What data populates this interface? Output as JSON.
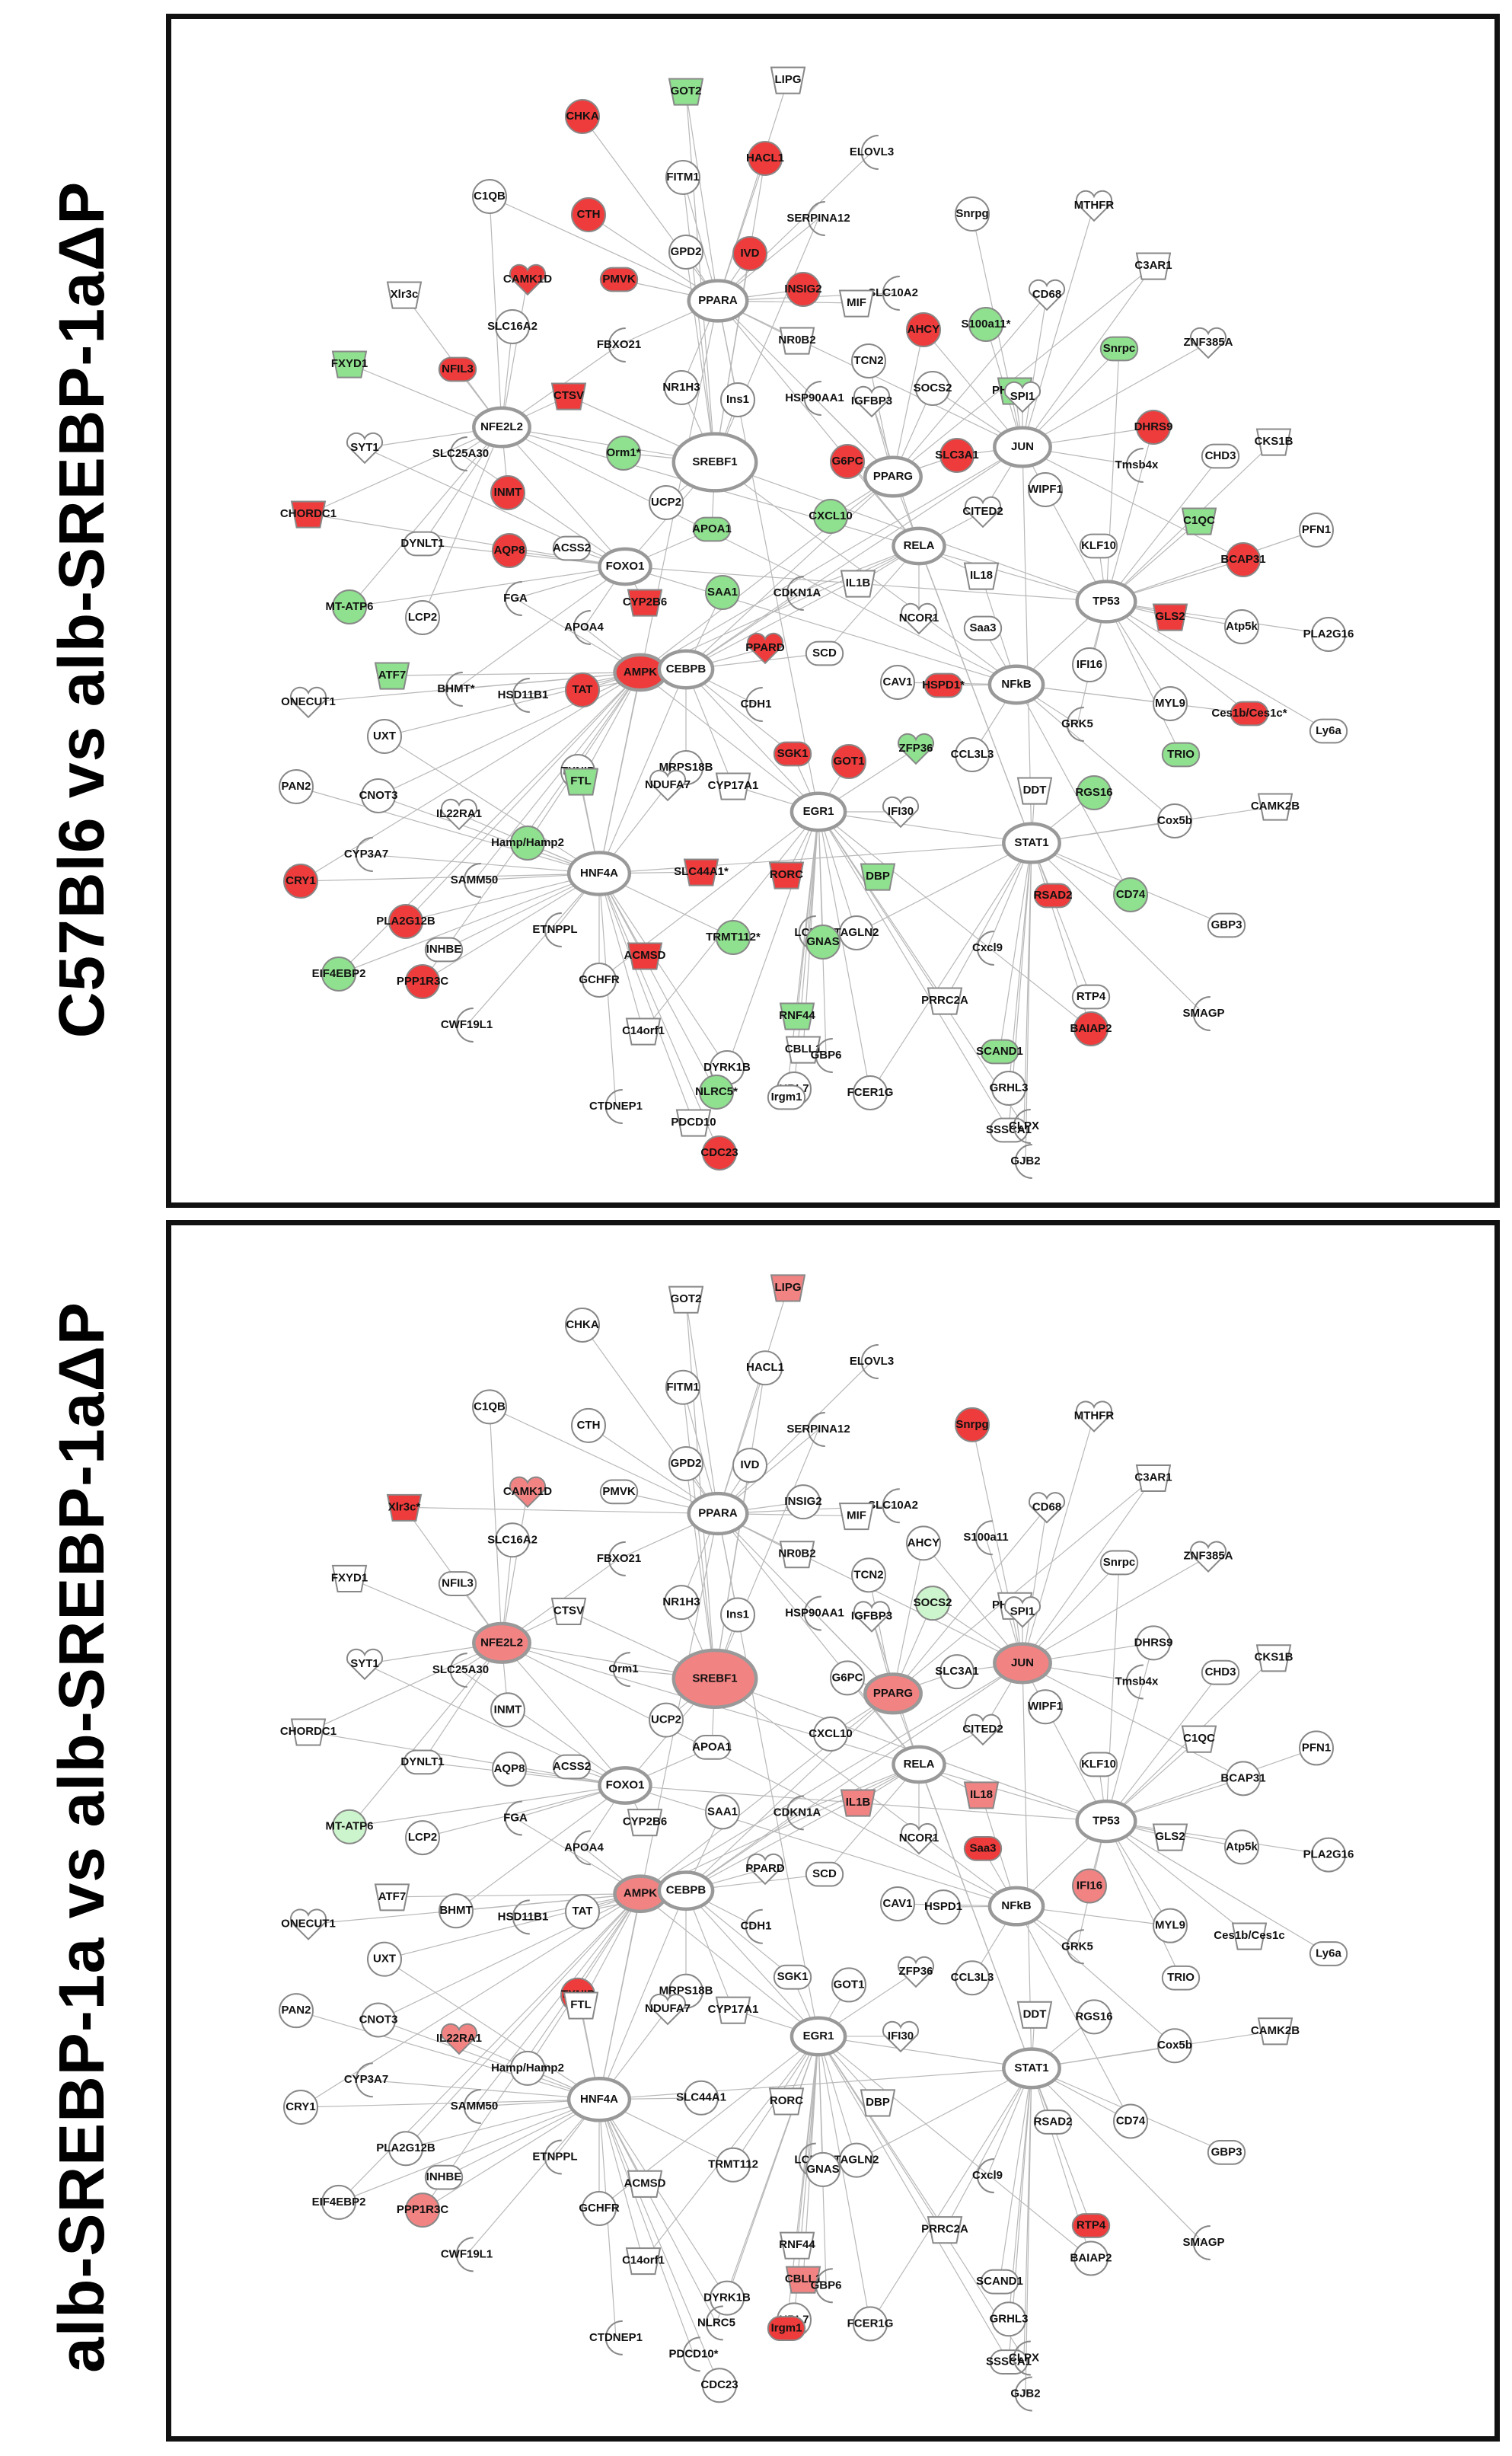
{
  "colors": {
    "red": "#ee3b3b",
    "light_red": "#f28383",
    "green": "#8fe08f",
    "light_green": "#cdf5cd",
    "white": "#ffffff",
    "node_stroke": "#888888",
    "edge": "#b8b8b8",
    "hub_stroke": "#999999"
  },
  "panels": [
    {
      "label": "C57Bl6 vs alb-SREBP-1aΔP",
      "node_states": {
        "CHKA": "red",
        "GOT2": "green",
        "LIPG": "white",
        "FITM1": "white",
        "HACL1": "red",
        "ELOVL3": "red",
        "C1QB": "white",
        "CTH": "red",
        "GPD2": "white",
        "IVD": "red",
        "SERPINA12": "green",
        "Snrpg": "white",
        "MTHFR": "white",
        "CAMK1D": "red",
        "PMVK": "red",
        "PPARA": "white",
        "INSIG2": "red",
        "SLC10A2": "red",
        "C3AR1": "white",
        "Xlr3c": "white",
        "MIF": "white",
        "CD68": "white",
        "SLC16A2": "white",
        "FBXO21": "white",
        "NR0B2": "white",
        "AHCY": "red",
        "S100a11*": "green",
        "FXYD1": "green",
        "NFIL3": "red",
        "TCN2": "white",
        "Snrpc": "green",
        "ZNF385A": "white",
        "NR1H3": "white",
        "CTSV": "red",
        "HSP90AA1": "red",
        "PHLDA1": "green",
        "SOCS2": "white",
        "SPI1": "white",
        "SYT1": "white",
        "NFE2L2": "white",
        "Ins1": "white",
        "IGFBP3": "white",
        "SLC25A30": "white",
        "Orm1*": "green",
        "SREBF1": "white",
        "G6PC": "red",
        "SLC3A1": "red",
        "JUN": "white",
        "DHRS9": "red",
        "CKS1B": "white",
        "Tmsb4x": "white",
        "CHD3": "white",
        "PPARG": "white",
        "CHORDC1": "red",
        "INMT": "red",
        "UCP2": "white",
        "APOA1": "green",
        "CXCL10": "green",
        "WIPF1": "white",
        "CITED2": "white",
        "C1QC": "green",
        "PFN1": "white",
        "DYNLT1": "white",
        "AQP8": "red",
        "ACSS2": "white",
        "FOXO1": "white",
        "RELA": "white",
        "KLF10": "white",
        "BCAP31": "red",
        "IL1B": "white",
        "CDKN1A": "red",
        "SAA1": "green",
        "IL18": "white",
        "MT-ATP6": "green",
        "FGA": "red",
        "CYP2B6": "red",
        "Saa3": "white",
        "NCOR1": "white",
        "TP53": "white",
        "GLS2": "red",
        "LCP2": "white",
        "APOA4": "green",
        "Atp5k": "white",
        "PLA2G16": "white",
        "SCD": "white",
        "PPARD": "red",
        "ATF7": "green",
        "BHMT*": "red",
        "AMPK": "red",
        "CEBPB": "white",
        "HSD11B1": "red",
        "TAT": "red",
        "CAV1": "white",
        "HSPD1*": "red",
        "IFI16": "white",
        "NFkB": "white",
        "ONECUT1": "white",
        "MYL9": "white",
        "Ces1b/Ces1c*": "red",
        "Ly6a": "white",
        "CDH1": "red",
        "GRK5": "red",
        "UXT": "white",
        "MRPS18B": "white",
        "SGK1": "red",
        "GOT1": "red",
        "CCL3L3": "white",
        "ZFP36": "green",
        "TRIO": "green",
        "TXNIP": "white",
        "FTL": "green",
        "PAN2": "white",
        "CNOT3": "white",
        "NDUFA7": "white",
        "CYP17A1": "white",
        "DDT": "white",
        "RGS16": "green",
        "CAMK2B": "white",
        "Cox5b": "white",
        "IL22RA1": "white",
        "EGR1": "white",
        "IFI30": "white",
        "Hamp/Hamp2": "green",
        "STAT1": "white",
        "CYP3A7": "red",
        "CRY1": "red",
        "HNF4A": "white",
        "SLC44A1*": "red",
        "RORC": "red",
        "DBP": "green",
        "CD74": "green",
        "SAMM50": "red",
        "PLA2G12B": "red",
        "RSAD2": "red",
        "ETNPPL": "red",
        "GBP3": "white",
        "TRMT112*": "green",
        "LCN2": "green",
        "TAGLN2": "white",
        "INHBE": "white",
        "EIF4EBP2": "green",
        "ACMSD": "red",
        "GNAS": "green",
        "Cxcl9": "white",
        "PPP1R3C": "red",
        "GCHFR": "white",
        "RTP4": "white",
        "SMAGP": "white",
        "BAIAP2": "red",
        "PRRC2A": "white",
        "CWF19L1": "red",
        "CBLL1": "white",
        "RNF44": "green",
        "GBP6": "white",
        "SCAND1": "green",
        "GRHL3": "white",
        "C14orf1": "white",
        "DYRK1B": "white",
        "UBL7": "white",
        "SSSCA1": "white",
        "CLPX": "red",
        "CTDNEP1": "white",
        "NLRC5*": "green",
        "Irgm1": "white",
        "FCER1G": "white",
        "GJB2": "green",
        "PDCD10": "white",
        "CDC23": "red"
      }
    },
    {
      "label": "alb-SREBP-1a vs alb-SREBP-1aΔP",
      "node_states": {
        "CHKA": "white",
        "GOT2": "white",
        "LIPG": "light_red",
        "FITM1": "white",
        "HACL1": "white",
        "ELOVL3": "white",
        "C1QB": "white",
        "CTH": "white",
        "GPD2": "white",
        "IVD": "white",
        "SERPINA12": "white",
        "Snrpg": "red",
        "MTHFR": "white",
        "CAMK1D": "light_red",
        "PMVK": "white",
        "PPARA": "white",
        "INSIG2": "white",
        "SLC10A2": "white",
        "C3AR1": "white",
        "Xlr3c*": "red",
        "MIF": "white",
        "CD68": "white",
        "SLC16A2": "white",
        "FBXO21": "white",
        "NR0B2": "white",
        "AHCY": "white",
        "S100a11": "white",
        "FXYD1": "white",
        "NFIL3": "white",
        "TCN2": "white",
        "Snrpc": "white",
        "ZNF385A": "white",
        "NR1H3": "white",
        "CTSV": "white",
        "HSP90AA1": "white",
        "PHLDA1": "white",
        "SOCS2": "light_green",
        "SPI1": "white",
        "SYT1": "white",
        "NFE2L2": "light_red",
        "Ins1": "white",
        "IGFBP3": "white",
        "SLC25A30": "white",
        "Orm1": "white",
        "SREBF1": "light_red",
        "G6PC": "white",
        "SLC3A1": "white",
        "JUN": "light_red",
        "DHRS9": "white",
        "CKS1B": "white",
        "Tmsb4x": "white",
        "CHD3": "white",
        "PPARG": "light_red",
        "CHORDC1": "white",
        "INMT": "white",
        "UCP2": "white",
        "APOA1": "white",
        "CXCL10": "white",
        "WIPF1": "white",
        "CITED2": "white",
        "C1QC": "white",
        "PFN1": "white",
        "DYNLT1": "white",
        "AQP8": "white",
        "ACSS2": "white",
        "FOXO1": "white",
        "RELA": "white",
        "KLF10": "white",
        "BCAP31": "white",
        "IL1B": "light_red",
        "CDKN1A": "white",
        "SAA1": "white",
        "IL18": "light_red",
        "MT-ATP6": "light_green",
        "FGA": "white",
        "CYP2B6": "white",
        "Saa3": "red",
        "NCOR1": "white",
        "TP53": "white",
        "GLS2": "white",
        "LCP2": "white",
        "APOA4": "white",
        "Atp5k": "white",
        "PLA2G16": "white",
        "SCD": "white",
        "PPARD": "white",
        "ATF7": "white",
        "BHMT": "white",
        "AMPK": "light_red",
        "CEBPB": "white",
        "HSD11B1": "white",
        "TAT": "white",
        "CAV1": "white",
        "HSPD1": "white",
        "IFI16": "light_red",
        "NFkB": "white",
        "ONECUT1": "white",
        "MYL9": "white",
        "Ces1b/Ces1c": "white",
        "Ly6a": "white",
        "CDH1": "white",
        "GRK5": "light_red",
        "UXT": "white",
        "MRPS18B": "white",
        "SGK1": "white",
        "GOT1": "white",
        "CCL3L3": "white",
        "ZFP36": "white",
        "TRIO": "white",
        "TXNIP": "red",
        "FTL": "white",
        "PAN2": "white",
        "CNOT3": "white",
        "NDUFA7": "white",
        "CYP17A1": "white",
        "DDT": "white",
        "RGS16": "white",
        "CAMK2B": "white",
        "Cox5b": "white",
        "IL22RA1": "light_red",
        "EGR1": "white",
        "IFI30": "white",
        "Hamp/Hamp2": "white",
        "STAT1": "white",
        "CYP3A7": "white",
        "CRY1": "white",
        "HNF4A": "white",
        "SLC44A1": "white",
        "RORC": "white",
        "DBP": "white",
        "CD74": "white",
        "SAMM50": "white",
        "PLA2G12B": "white",
        "RSAD2": "white",
        "ETNPPL": "white",
        "GBP3": "white",
        "TRMT112": "white",
        "LCN2": "light_red",
        "TAGLN2": "white",
        "INHBE": "white",
        "EIF4EBP2": "white",
        "ACMSD": "white",
        "GNAS": "white",
        "Cxcl9": "light_red",
        "PPP1R3C": "light_red",
        "GCHFR": "white",
        "RTP4": "red",
        "SMAGP": "white",
        "BAIAP2": "white",
        "PRRC2A": "white",
        "CWF19L1": "white",
        "CBLL1": "light_red",
        "RNF44": "white",
        "GBP6": "white",
        "SCAND1": "white",
        "GRHL3": "white",
        "C14orf1": "white",
        "DYRK1B": "white",
        "UBL7": "white",
        "SSSCA1": "white",
        "CLPX": "light_red",
        "CTDNEP1": "white",
        "NLRC5": "white",
        "Irgm1": "red",
        "FCER1G": "white",
        "GJB2": "white",
        "PDCD10*": "red",
        "CDC23": "white"
      }
    }
  ],
  "hubs": [
    "SREBF1",
    "HNF4A",
    "PPARA",
    "TP53",
    "JUN",
    "STAT1",
    "NFE2L2",
    "PPARG",
    "CEBPB",
    "NFkB",
    "EGR1",
    "AMPK",
    "FOXO1",
    "RELA"
  ]
}
